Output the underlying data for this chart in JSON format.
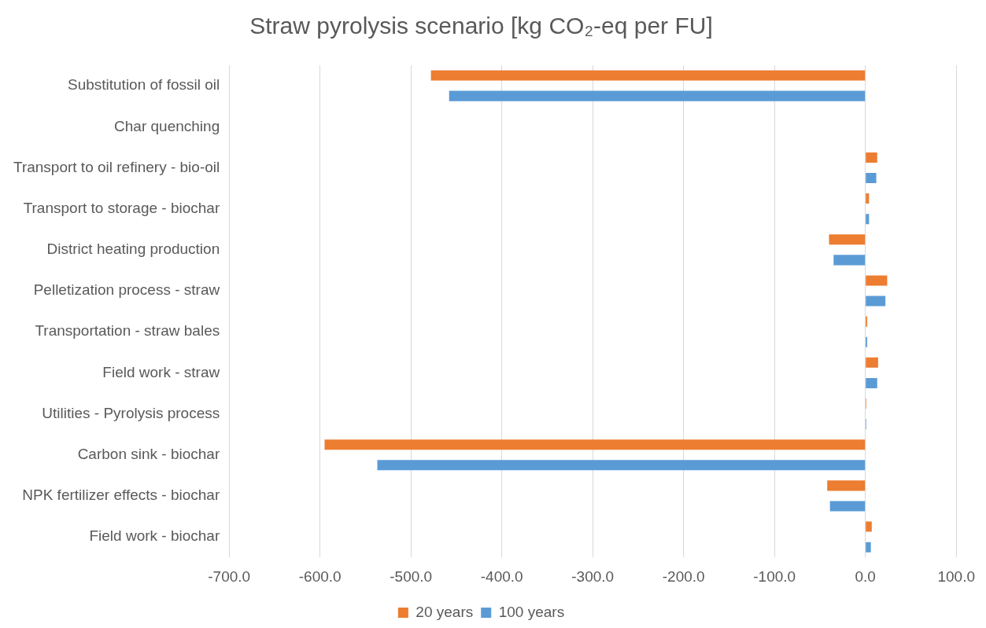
{
  "chart_data": {
    "type": "bar",
    "orientation": "horizontal",
    "title": "Straw pyrolysis scenario [kg CO₂-eq per FU]",
    "categories": [
      "Substitution of fossil oil",
      "Char quenching",
      "Transport to oil refinery - bio-oil",
      "Transport to storage - biochar",
      "District heating production",
      "Pelletization process - straw",
      "Transportation - straw bales",
      "Field work - straw",
      "Utilities - Pyrolysis process",
      "Carbon sink - biochar",
      "NPK fertilizer effects - biochar",
      "Field work - biochar"
    ],
    "series": [
      {
        "name": "20 years",
        "color": "#ed7d31",
        "values": [
          -478,
          0,
          13,
          4,
          -40,
          24,
          2,
          14,
          1,
          -595,
          -42,
          7
        ]
      },
      {
        "name": "100 years",
        "color": "#5b9bd5",
        "values": [
          -458,
          0,
          12,
          4,
          -35,
          22,
          2,
          13,
          1,
          -537,
          -39,
          6
        ]
      }
    ],
    "xlim": [
      -700,
      100
    ],
    "xticks": [
      {
        "value": -700,
        "label": "-700.0"
      },
      {
        "value": -600,
        "label": "-600.0"
      },
      {
        "value": -500,
        "label": "-500.0"
      },
      {
        "value": -400,
        "label": "-400.0"
      },
      {
        "value": -300,
        "label": "-300.0"
      },
      {
        "value": -200,
        "label": "-200.0"
      },
      {
        "value": -100,
        "label": "-100.0"
      },
      {
        "value": 0,
        "label": "0.0"
      },
      {
        "value": 100,
        "label": "100.0"
      }
    ],
    "grid": "x",
    "legend": "bottom"
  }
}
